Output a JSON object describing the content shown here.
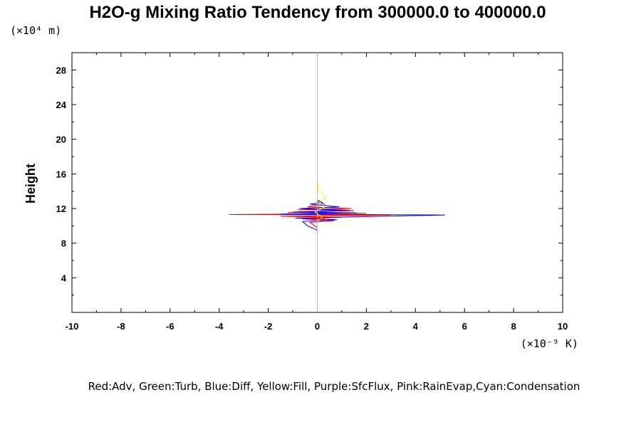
{
  "chart_data": {
    "type": "line",
    "title": "H2O-g Mixing Ratio Tendency from 300000.0 to 400000.0",
    "ylabel": "Height",
    "xlabel": "",
    "y_scale_label": "(×10⁴ m)",
    "x_scale_label": "(×10⁻⁹ K)",
    "xlim": [
      -10,
      10
    ],
    "ylim": [
      0,
      30
    ],
    "x_ticks": [
      -10,
      -8,
      -6,
      -4,
      -2,
      0,
      2,
      4,
      6,
      8,
      10
    ],
    "y_ticks": [
      4,
      8,
      12,
      16,
      20,
      24,
      28
    ],
    "legend_text": "Red:Adv, Green:Turb, Blue:Diff, Yellow:Fill, Purple:SfcFlux, Pink:RainEvap,Cyan:Condensation",
    "series": [
      {
        "name": "Adv",
        "color": "#ff0000",
        "points": [
          [
            0,
            8.8
          ],
          [
            0,
            9.8
          ],
          [
            -0.3,
            10.4
          ],
          [
            0.7,
            10.6
          ],
          [
            -0.6,
            10.8
          ],
          [
            1,
            11.0
          ],
          [
            -1.5,
            11.1
          ],
          [
            3.0,
            11.25
          ],
          [
            -3.6,
            11.3
          ],
          [
            2.0,
            11.45
          ],
          [
            -1.2,
            11.55
          ],
          [
            1.5,
            11.75
          ],
          [
            -0.8,
            11.9
          ],
          [
            1.4,
            12.0
          ],
          [
            -0.4,
            12.2
          ],
          [
            0.3,
            12.5
          ],
          [
            0,
            12.8
          ],
          [
            0,
            15
          ]
        ]
      },
      {
        "name": "Diff",
        "color": "#0000ff",
        "points": [
          [
            0,
            8.6
          ],
          [
            0,
            9.5
          ],
          [
            -0.4,
            10.0
          ],
          [
            -0.6,
            10.5
          ],
          [
            0.8,
            10.7
          ],
          [
            -0.9,
            10.9
          ],
          [
            5.2,
            11.25
          ],
          [
            -1.5,
            11.35
          ],
          [
            1.6,
            11.5
          ],
          [
            -1.0,
            11.6
          ],
          [
            1.3,
            11.8
          ],
          [
            -0.7,
            12.0
          ],
          [
            0.9,
            12.2
          ],
          [
            -0.3,
            12.5
          ],
          [
            0.2,
            12.7
          ],
          [
            0,
            13.0
          ],
          [
            0,
            15
          ]
        ]
      },
      {
        "name": "Fill",
        "color": "#ffff00",
        "points": [
          [
            0,
            10.5
          ],
          [
            0.2,
            11
          ],
          [
            -0.1,
            11.6
          ],
          [
            0.3,
            12.2
          ],
          [
            0.1,
            12.7
          ],
          [
            0.35,
            13.3
          ],
          [
            0.05,
            14.2
          ],
          [
            0,
            15.2
          ]
        ]
      },
      {
        "name": "Condensation",
        "color": "#00ffff",
        "points": [
          [
            0,
            0
          ],
          [
            0,
            30
          ]
        ]
      }
    ]
  }
}
